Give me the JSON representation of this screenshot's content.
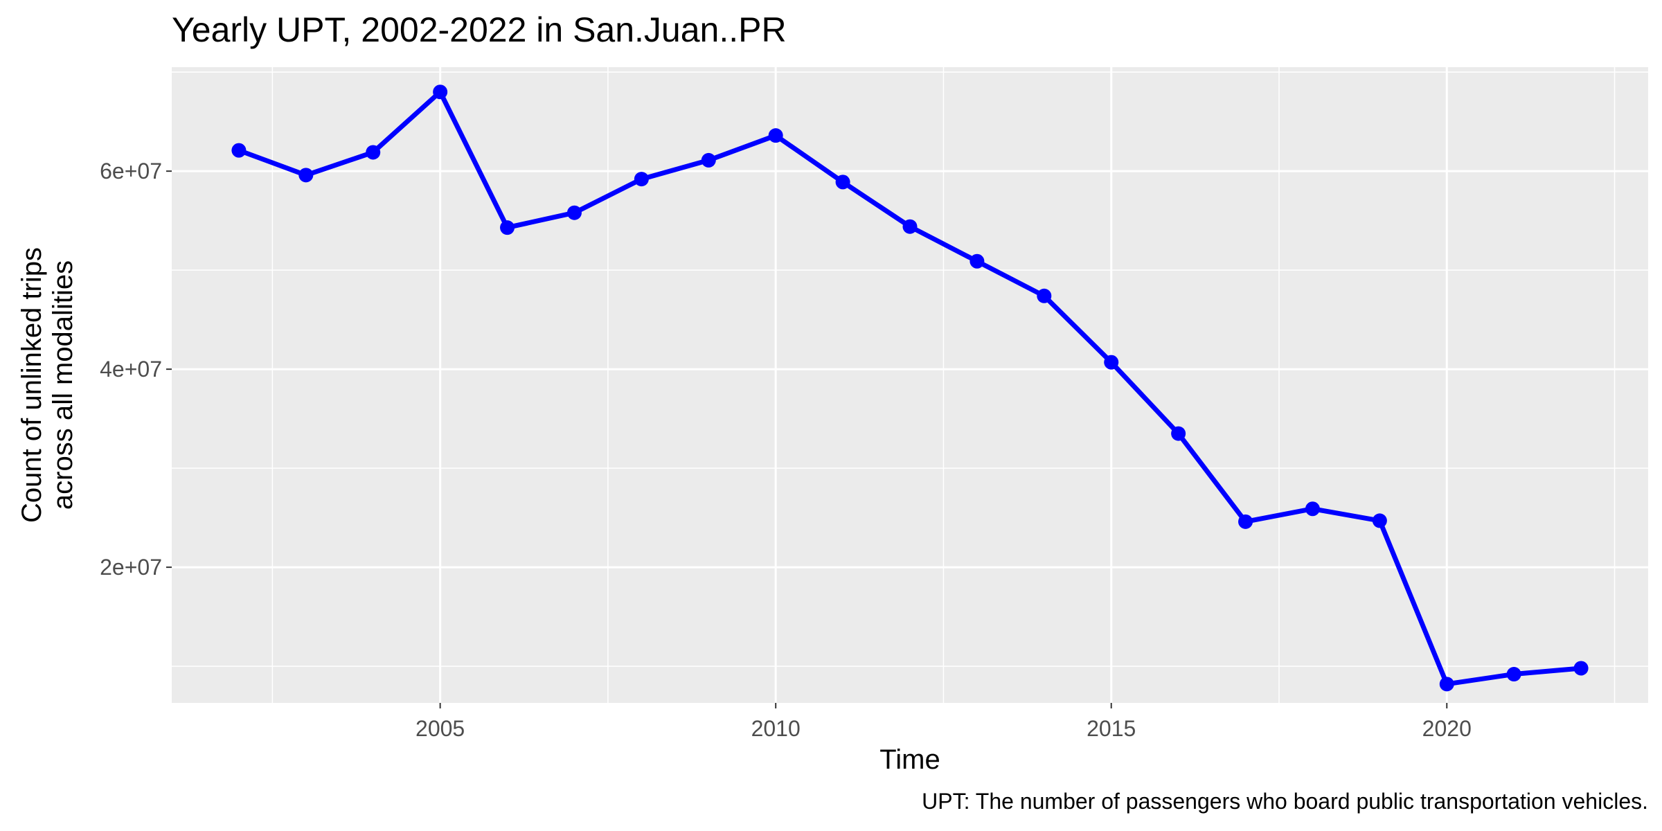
{
  "chart_data": {
    "type": "line",
    "title": "Yearly UPT, 2002-2022 in San.Juan..PR",
    "xlabel": "Time",
    "ylabel_lines": [
      "Count of unlinked trips",
      "across all modalities"
    ],
    "caption": "UPT: The number of passengers who board public transportation vehicles.",
    "x": [
      2002,
      2003,
      2004,
      2005,
      2006,
      2007,
      2008,
      2009,
      2010,
      2011,
      2012,
      2013,
      2014,
      2015,
      2016,
      2017,
      2018,
      2019,
      2020,
      2021,
      2022
    ],
    "series": [
      {
        "values": [
          62100000,
          59600000,
          61900000,
          68000000,
          54300000,
          55800000,
          59200000,
          61100000,
          63600000,
          58900000,
          54400000,
          50900000,
          47400000,
          40700000,
          33500000,
          24600000,
          25900000,
          24700000,
          8200000,
          9200000,
          9800000
        ],
        "color": "#0000ff"
      }
    ],
    "xlim": [
      2001,
      2023
    ],
    "ylim": [
      6300000,
      70500000
    ],
    "x_ticks": [
      2005,
      2010,
      2015,
      2020
    ],
    "x_tick_labels": [
      "2005",
      "2010",
      "2015",
      "2020"
    ],
    "y_ticks": [
      20000000,
      40000000,
      60000000
    ],
    "y_tick_labels": [
      "2e+07",
      "4e+07",
      "6e+07"
    ],
    "grid": true,
    "panel_background": "#ebebeb",
    "grid_color": "#ffffff"
  }
}
